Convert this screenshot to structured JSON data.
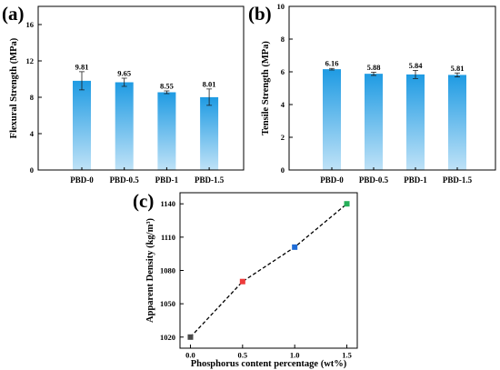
{
  "chart_data": [
    {
      "panel_label": "(a)",
      "type": "bar",
      "categories": [
        "PBD-0",
        "PBD-0.5",
        "PBD-1",
        "PBD-1.5"
      ],
      "values": [
        9.81,
        9.65,
        8.55,
        8.01
      ],
      "errors": [
        1.0,
        0.45,
        0.15,
        0.9
      ],
      "ylabel": "Flexural Strength (MPa)",
      "ylim": [
        0,
        18
      ],
      "yticks": [
        0,
        4,
        8,
        12,
        16
      ],
      "grid": false,
      "colors": {
        "bar_top": "#1f9be3",
        "bar_bottom": "#bfe2f7",
        "error_bar": "#1b1b1b"
      }
    },
    {
      "panel_label": "(b)",
      "type": "bar",
      "categories": [
        "PBD-0",
        "PBD-0.5",
        "PBD-1",
        "PBD-1.5"
      ],
      "values": [
        6.16,
        5.88,
        5.84,
        5.81
      ],
      "errors": [
        0.05,
        0.1,
        0.25,
        0.12
      ],
      "ylabel": "Tensile Strength (MPa)",
      "ylim": [
        0,
        10
      ],
      "yticks": [
        0,
        2,
        4,
        6,
        8,
        10
      ],
      "grid": false,
      "colors": {
        "bar_top": "#1f9be3",
        "bar_bottom": "#bfe2f7",
        "error_bar": "#1b1b1b"
      }
    },
    {
      "panel_label": "(c)",
      "type": "scatter",
      "x": [
        0.0,
        0.5,
        1.0,
        1.5
      ],
      "y": [
        1020,
        1070,
        1101,
        1140
      ],
      "xlabel": "Phosphorus content percentage (wt%)",
      "ylabel": "Apparent Density (kg/m³)",
      "xlim": [
        -0.1,
        1.6
      ],
      "ylim": [
        1010,
        1150
      ],
      "xticks": [
        0,
        0.5,
        1,
        1.5
      ],
      "xtick_labels": [
        "0.0",
        "0.5",
        "1.0",
        "1.5"
      ],
      "yticks": [
        1020,
        1050,
        1080,
        1110,
        1140
      ],
      "grid": false,
      "colors": {
        "points": [
          "#4a4a4a",
          "#ee3b3b",
          "#1f6cd6",
          "#27b05a"
        ],
        "line": "#000000"
      }
    }
  ]
}
